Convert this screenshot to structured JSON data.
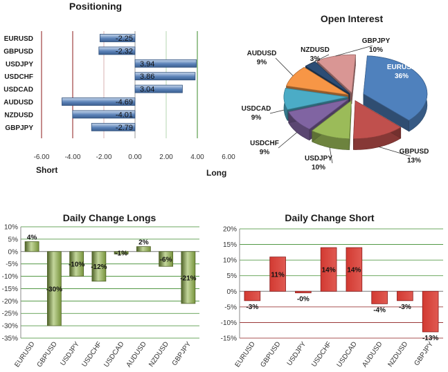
{
  "chart_data": [
    {
      "type": "bar",
      "orientation": "horizontal",
      "title": "Positioning",
      "categories": [
        "EURUSD",
        "GBPUSD",
        "USDJPY",
        "USDCHF",
        "USDCAD",
        "AUDUSD",
        "NZDUSD",
        "GBPJPY"
      ],
      "values": [
        -2.25,
        -2.32,
        3.94,
        3.86,
        3.04,
        -4.69,
        -4.01,
        -2.79
      ],
      "value_labels": [
        "-2.25",
        "-2.32",
        "3.94",
        "3.86",
        "3.04",
        "-4.69",
        "-4.01",
        "-2.79"
      ],
      "xlim": [
        -6,
        6
      ],
      "ticks": [
        -6,
        -4,
        -2,
        0,
        2,
        4,
        6
      ],
      "tick_labels": [
        "-6.00",
        "-4.00",
        "-2.00",
        "0.00",
        "2.00",
        "4.00",
        "6.00"
      ],
      "left_label": "Short",
      "right_label": "Long",
      "colors": {
        "bar": "#5b82b8",
        "bar_light": "#c9d9ee",
        "short_line": "#8b1a1a",
        "long_line": "#3a8a2a"
      }
    },
    {
      "type": "pie",
      "style": "3d-exploded",
      "title": "Open Interest",
      "slices": [
        {
          "label": "EURUSD",
          "percent": "36%",
          "value": 36,
          "color": "#4f81bd"
        },
        {
          "label": "GBPUSD",
          "percent": "13%",
          "value": 13,
          "color": "#c0504d"
        },
        {
          "label": "USDJPY",
          "percent": "10%",
          "value": 10,
          "color": "#9bbb59"
        },
        {
          "label": "USDCHF",
          "percent": "9%",
          "value": 9,
          "color": "#8064a2"
        },
        {
          "label": "USDCAD",
          "percent": "9%",
          "value": 9,
          "color": "#4bacc6"
        },
        {
          "label": "AUDUSD",
          "percent": "9%",
          "value": 9,
          "color": "#f79646"
        },
        {
          "label": "NZDUSD",
          "percent": "3%",
          "value": 3,
          "color": "#2c4d75"
        },
        {
          "label": "GBPJPY",
          "percent": "10%",
          "value": 10,
          "color": "#d99694"
        }
      ]
    },
    {
      "type": "bar",
      "title": "Daily Change Longs",
      "categories": [
        "EURUSD",
        "GBPUSD",
        "USDJPY",
        "USDCHF",
        "USDCAD",
        "AUDUSD",
        "NZDUSD",
        "GBPJPY"
      ],
      "values": [
        4,
        -30,
        -10,
        -12,
        -1,
        2,
        -6,
        -21
      ],
      "value_labels": [
        "4%",
        "-30%",
        "-10%",
        "-12%",
        "-1%",
        "2%",
        "-6%",
        "-21%"
      ],
      "ylim": [
        -35,
        10
      ],
      "ticks": [
        10,
        5,
        0,
        -5,
        -10,
        -15,
        -20,
        -25,
        -30,
        -35
      ],
      "tick_labels": [
        "10%",
        "5%",
        "0%",
        "-5%",
        "-10%",
        "-15%",
        "-20%",
        "-25%",
        "-30%",
        "-35%"
      ],
      "grid": true,
      "colors": {
        "bar": "#77933c",
        "bar_dark": "#4f6228",
        "bar_light": "#c3d69b",
        "grid": "#3a8a2a"
      }
    },
    {
      "type": "bar",
      "title": "Daily Change Short",
      "categories": [
        "EURUSD",
        "GBPUSD",
        "USDJPY",
        "USDCHF",
        "USDCAD",
        "AUDUSD",
        "NZDUSD",
        "GBPJPY"
      ],
      "values": [
        -3,
        11,
        -0.5,
        14,
        14,
        -4,
        -3,
        -13
      ],
      "value_labels": [
        "-3%",
        "11%",
        "-0%",
        "14%",
        "14%",
        "-4%",
        "-3%",
        "-13%"
      ],
      "ylim": [
        -15,
        20
      ],
      "ticks": [
        20,
        15,
        10,
        5,
        0,
        -5,
        -10,
        -15
      ],
      "tick_labels": [
        "20%",
        "15%",
        "10%",
        "5%",
        "0%",
        "-5%",
        "-10%",
        "-15%"
      ],
      "grid": true,
      "colors": {
        "bar": "#d23a32",
        "bar_dark": "#8b1a1a",
        "grid_pos": "#3a8a2a",
        "grid_neg": "#8b1a1a"
      }
    }
  ]
}
